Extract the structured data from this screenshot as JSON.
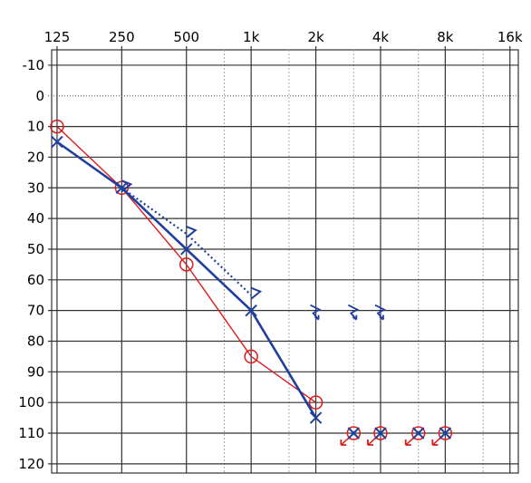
{
  "chart_data": {
    "type": "line",
    "title": "",
    "xlabel": "",
    "ylabel": "",
    "x_scale": "log2",
    "y_inverted": true,
    "grid": true,
    "x_ticks": [
      {
        "freq": 125,
        "label": "125"
      },
      {
        "freq": 250,
        "label": "250"
      },
      {
        "freq": 500,
        "label": "500"
      },
      {
        "freq": 1000,
        "label": "1k"
      },
      {
        "freq": 2000,
        "label": "2k"
      },
      {
        "freq": 4000,
        "label": "4k"
      },
      {
        "freq": 8000,
        "label": "8k"
      },
      {
        "freq": 16000,
        "label": "16k"
      }
    ],
    "x_minor_grid": [
      750,
      1500,
      3000,
      6000,
      12000
    ],
    "y_ticks": [
      -10,
      0,
      10,
      20,
      30,
      40,
      50,
      60,
      70,
      80,
      90,
      100,
      110,
      120
    ],
    "ylim": [
      -15,
      123
    ],
    "xlim": [
      118,
      17500
    ],
    "dotted_reference_line": 0,
    "colors": {
      "right_ear": "#dd1a1a",
      "left_ear": "#1f3fa0",
      "grid_major": "#333333",
      "grid_minor": "#aaaaaa"
    },
    "series": [
      {
        "marker": "circle",
        "color": "#dd1a1a",
        "points": [
          {
            "x": 125,
            "y": 10
          },
          {
            "x": 250,
            "y": 30
          },
          {
            "x": 500,
            "y": 55
          },
          {
            "x": 1000,
            "y": 85
          },
          {
            "x": 2000,
            "y": 100
          }
        ],
        "no_response": [
          {
            "x": 3000,
            "y": 110
          },
          {
            "x": 4000,
            "y": 110
          },
          {
            "x": 6000,
            "y": 110
          },
          {
            "x": 8000,
            "y": 110
          }
        ]
      },
      {
        "marker": "cross",
        "color": "#1f3fa0",
        "points": [
          {
            "x": 125,
            "y": 15
          },
          {
            "x": 250,
            "y": 30
          },
          {
            "x": 500,
            "y": 50
          },
          {
            "x": 1000,
            "y": 70
          },
          {
            "x": 2000,
            "y": 105
          }
        ],
        "no_response": [
          {
            "x": 3000,
            "y": 110
          },
          {
            "x": 4000,
            "y": 110
          },
          {
            "x": 6000,
            "y": 110
          },
          {
            "x": 8000,
            "y": 110
          }
        ]
      },
      {
        "marker": "bracket",
        "color": "#1f3fa0",
        "line_style": "dotted",
        "points": [
          {
            "x": 250,
            "y": 30
          },
          {
            "x": 500,
            "y": 45
          },
          {
            "x": 1000,
            "y": 65
          }
        ]
      },
      {
        "marker": "zigzag-arrow",
        "color": "#1f3fa0",
        "no_response": [
          {
            "x": 2000,
            "y": 70
          },
          {
            "x": 3000,
            "y": 70
          },
          {
            "x": 4000,
            "y": 70
          }
        ]
      }
    ]
  }
}
